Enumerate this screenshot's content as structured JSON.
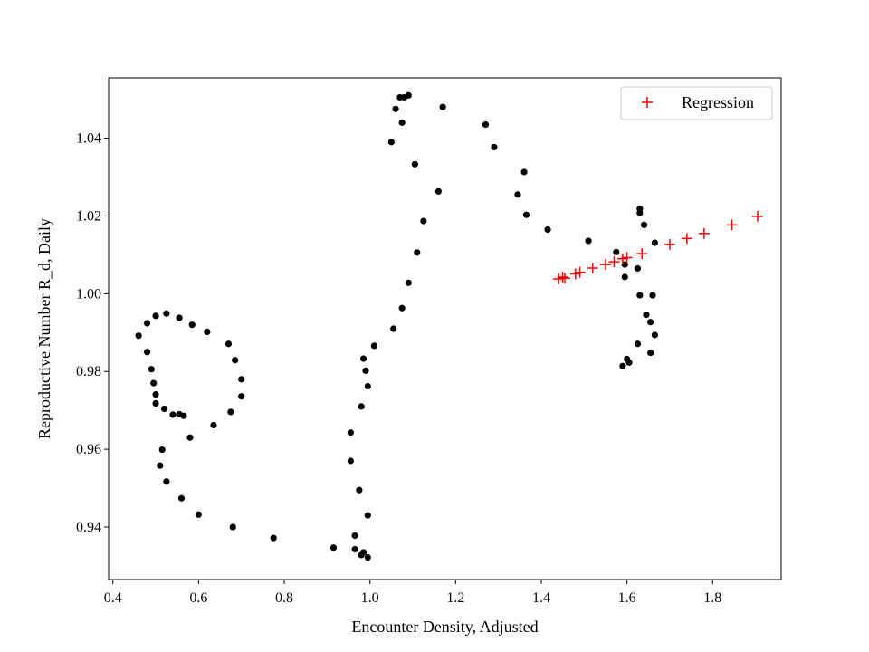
{
  "chart_data": {
    "type": "scatter",
    "title": "",
    "xlabel": "Encounter Density, Adjusted",
    "ylabel": "Reproductive Number R_d, Daily",
    "xlim": [
      0.39,
      1.96
    ],
    "ylim": [
      0.9265,
      1.0555
    ],
    "xticks": [
      0.4,
      0.6,
      0.8,
      1.0,
      1.2,
      1.4,
      1.6,
      1.8
    ],
    "xtick_labels": [
      "0.4",
      "0.6",
      "0.8",
      "1.0",
      "1.2",
      "1.4",
      "1.6",
      "1.8"
    ],
    "yticks": [
      0.94,
      0.96,
      0.98,
      1.0,
      1.02,
      1.04
    ],
    "ytick_labels": [
      "0.94",
      "0.96",
      "0.98",
      "1.00",
      "1.02",
      "1.04"
    ],
    "grid": false,
    "legend": {
      "position": "top-right",
      "entries": [
        "Regression"
      ]
    },
    "series": [
      {
        "marker": "dot",
        "color": "#000000",
        "x": [
          1.08,
          1.09,
          1.075,
          1.06,
          1.17,
          1.27,
          1.07,
          1.05,
          1.29,
          1.105,
          1.36,
          1.16,
          1.345,
          1.125,
          1.365,
          1.415,
          1.11,
          1.09,
          1.075,
          1.055,
          1.01,
          0.985,
          0.99,
          0.995,
          0.98,
          0.955,
          0.955,
          0.975,
          0.995,
          0.965,
          0.965,
          0.98,
          0.985,
          0.915,
          0.995,
          0.775,
          0.68,
          0.6,
          0.56,
          0.525,
          0.51,
          0.515,
          0.52,
          0.54,
          0.555,
          0.565,
          0.5,
          0.5,
          0.495,
          0.49,
          0.48,
          0.46,
          0.48,
          0.5,
          0.525,
          0.555,
          0.585,
          0.62,
          0.67,
          0.685,
          0.7,
          0.7,
          0.675,
          0.635,
          0.58,
          1.63,
          1.63,
          1.64,
          1.665,
          1.51,
          1.575,
          1.595,
          1.625,
          1.595,
          1.63,
          1.66,
          1.645,
          1.655,
          1.665,
          1.625,
          1.6,
          1.605,
          1.59,
          1.655
        ],
        "y": [
          1.0505,
          1.051,
          1.044,
          1.0475,
          1.048,
          1.0435,
          1.0505,
          1.039,
          1.0377,
          1.0333,
          1.0313,
          1.0263,
          1.0255,
          1.0187,
          1.0203,
          1.0165,
          1.0106,
          1.0028,
          0.9963,
          0.991,
          0.9866,
          0.9833,
          0.9802,
          0.9762,
          0.971,
          0.9643,
          0.957,
          0.9495,
          0.943,
          0.9378,
          0.9343,
          0.9328,
          0.9335,
          0.9347,
          0.9322,
          0.9372,
          0.94,
          0.9432,
          0.9474,
          0.9517,
          0.9558,
          0.9599,
          0.9704,
          0.9689,
          0.969,
          0.9686,
          0.9718,
          0.9741,
          0.977,
          0.9806,
          0.985,
          0.9892,
          0.9924,
          0.9943,
          0.9949,
          0.9938,
          0.992,
          0.9902,
          0.9871,
          0.9829,
          0.978,
          0.9736,
          0.9696,
          0.9662,
          0.963,
          1.0218,
          1.0208,
          1.0177,
          1.0131,
          1.0136,
          1.0107,
          1.0075,
          1.0065,
          1.0043,
          0.9996,
          0.9996,
          0.9946,
          0.9927,
          0.9894,
          0.9871,
          0.9832,
          0.9823,
          0.9814,
          0.9848
        ]
      },
      {
        "name": "Regression",
        "marker": "plus",
        "color": "#ff0000",
        "x": [
          1.44,
          1.45,
          1.455,
          1.48,
          1.49,
          1.52,
          1.55,
          1.57,
          1.59,
          1.6,
          1.635,
          1.7,
          1.74,
          1.78,
          1.845,
          1.905
        ],
        "y": [
          1.0038,
          1.0043,
          1.004,
          1.0051,
          1.0055,
          1.0066,
          1.0075,
          1.0082,
          1.009,
          1.0093,
          1.0103,
          1.0127,
          1.0142,
          1.0155,
          1.0177,
          1.0199
        ]
      }
    ]
  }
}
